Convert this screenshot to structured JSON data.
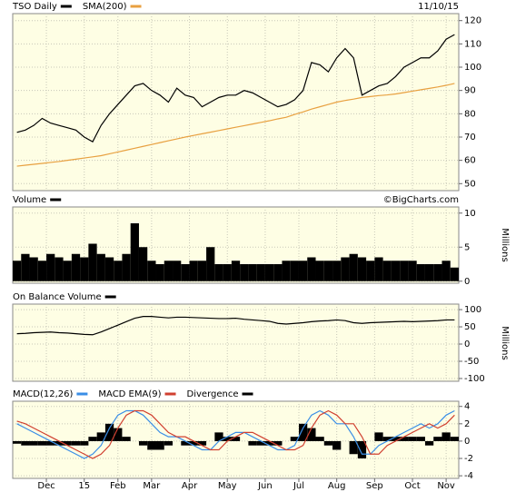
{
  "chart_data": [
    {
      "type": "line",
      "date_label": "11/10/15",
      "grid": true,
      "x": [
        0,
        1,
        2,
        3,
        4,
        5,
        6,
        7,
        8,
        9,
        10,
        11,
        12,
        13,
        14,
        15,
        16,
        17,
        18,
        19,
        20,
        21,
        22,
        23,
        24,
        25,
        26,
        27,
        28,
        29,
        30,
        31,
        32,
        33,
        34,
        35,
        36,
        37,
        38,
        39,
        40,
        41,
        42,
        43,
        44,
        45,
        46,
        47,
        48,
        49,
        50,
        51,
        52
      ],
      "xlim": [
        -0.5,
        52.5
      ],
      "ylim": [
        47,
        123
      ],
      "yticks": [
        50,
        60,
        70,
        80,
        90,
        100,
        110,
        120
      ],
      "series": [
        {
          "name": "TSO Daily",
          "color": "#000000",
          "values": [
            72,
            73,
            75,
            78,
            76,
            75,
            74,
            73,
            70,
            68,
            75,
            80,
            84,
            88,
            92,
            93,
            90,
            88,
            85,
            91,
            88,
            87,
            83,
            85,
            87,
            88,
            88,
            90,
            89,
            87,
            85,
            83,
            84,
            86,
            90,
            102,
            101,
            98,
            104,
            108,
            104,
            88,
            90,
            92,
            93,
            96,
            100,
            102,
            104,
            104,
            107,
            112,
            114
          ]
        },
        {
          "name": "SMA(200)",
          "color": "#e8a040",
          "values": [
            57.5,
            57.9,
            58.3,
            58.7,
            59.1,
            59.5,
            60,
            60.5,
            61,
            61.5,
            62,
            62.8,
            63.6,
            64.4,
            65.2,
            66,
            66.8,
            67.6,
            68.4,
            69.2,
            70,
            70.7,
            71.4,
            72.1,
            72.8,
            73.5,
            74.2,
            74.9,
            75.6,
            76.3,
            77,
            77.8,
            78.5,
            79.7,
            80.8,
            82,
            83,
            84,
            85,
            85.7,
            86.3,
            87,
            87.4,
            87.8,
            88.1,
            88.5,
            89.1,
            89.7,
            90.3,
            90.9,
            91.5,
            92.2,
            93
          ]
        }
      ]
    },
    {
      "type": "bar",
      "credit": "©BigCharts.com",
      "y_label": "Millions",
      "grid": true,
      "x": [
        0,
        1,
        2,
        3,
        4,
        5,
        6,
        7,
        8,
        9,
        10,
        11,
        12,
        13,
        14,
        15,
        16,
        17,
        18,
        19,
        20,
        21,
        22,
        23,
        24,
        25,
        26,
        27,
        28,
        29,
        30,
        31,
        32,
        33,
        34,
        35,
        36,
        37,
        38,
        39,
        40,
        41,
        42,
        43,
        44,
        45,
        46,
        47,
        48,
        49,
        50,
        51,
        52
      ],
      "xlim": [
        -0.5,
        52.5
      ],
      "ylim": [
        -0.3,
        10.9
      ],
      "yticks": [
        0,
        5,
        10
      ],
      "series": [
        {
          "name": "Volume",
          "color": "#000000",
          "values": [
            3,
            4,
            3.5,
            3,
            4,
            3.5,
            3,
            4,
            3.5,
            5.5,
            4,
            3.5,
            3,
            4,
            8.5,
            5,
            3,
            2.5,
            3,
            3,
            2.5,
            3,
            3,
            5,
            2.5,
            2.5,
            3,
            2.5,
            2.5,
            2.5,
            2.5,
            2.5,
            3,
            3,
            3,
            3.5,
            3,
            3,
            3,
            3.5,
            4,
            3.5,
            3,
            3.5,
            3,
            3,
            3,
            3,
            2.5,
            2.5,
            2.5,
            3,
            2
          ]
        }
      ]
    },
    {
      "type": "line",
      "y_label": "Millions",
      "grid": true,
      "x": [
        0,
        1,
        2,
        3,
        4,
        5,
        6,
        7,
        8,
        9,
        10,
        11,
        12,
        13,
        14,
        15,
        16,
        17,
        18,
        19,
        20,
        21,
        22,
        23,
        24,
        25,
        26,
        27,
        28,
        29,
        30,
        31,
        32,
        33,
        34,
        35,
        36,
        37,
        38,
        39,
        40,
        41,
        42,
        43,
        44,
        45,
        46,
        47,
        48,
        49,
        50,
        51,
        52
      ],
      "xlim": [
        -0.5,
        52.5
      ],
      "ylim": [
        -108,
        116
      ],
      "yticks": [
        100,
        50,
        0,
        -50,
        -100
      ],
      "series": [
        {
          "name": "On Balance Volume",
          "color": "#000000",
          "values": [
            30,
            31,
            33,
            34,
            35,
            33,
            32,
            30,
            28,
            27,
            35,
            45,
            55,
            65,
            75,
            80,
            80,
            78,
            76,
            78,
            78,
            77,
            76,
            75,
            74,
            74,
            75,
            72,
            70,
            68,
            66,
            60,
            58,
            60,
            62,
            65,
            67,
            68,
            70,
            68,
            62,
            60,
            62,
            63,
            64,
            65,
            66,
            65,
            66,
            67,
            68,
            70,
            70
          ]
        }
      ]
    },
    {
      "type": "line",
      "grid": true,
      "x": [
        0,
        1,
        2,
        3,
        4,
        5,
        6,
        7,
        8,
        9,
        10,
        11,
        12,
        13,
        14,
        15,
        16,
        17,
        18,
        19,
        20,
        21,
        22,
        23,
        24,
        25,
        26,
        27,
        28,
        29,
        30,
        31,
        32,
        33,
        34,
        35,
        36,
        37,
        38,
        39,
        40,
        41,
        42,
        43,
        44,
        45,
        46,
        47,
        48,
        49,
        50,
        51,
        52
      ],
      "xlim": [
        -0.5,
        52.5
      ],
      "ylim": [
        -4.3,
        4.6
      ],
      "yticks": [
        4,
        2,
        0,
        -2,
        -4
      ],
      "xticks": [
        {
          "value": 3.5,
          "label": "Dec"
        },
        {
          "value": 8,
          "label": "15"
        },
        {
          "value": 12,
          "label": "Feb"
        },
        {
          "value": 16,
          "label": "Mar"
        },
        {
          "value": 20.5,
          "label": "Apr"
        },
        {
          "value": 25,
          "label": "May"
        },
        {
          "value": 29.5,
          "label": "Jun"
        },
        {
          "value": 33.5,
          "label": "Jul"
        },
        {
          "value": 38,
          "label": "Aug"
        },
        {
          "value": 42.5,
          "label": "Sep"
        },
        {
          "value": 47,
          "label": "Oct"
        },
        {
          "value": 51,
          "label": "Nov"
        }
      ],
      "series": [
        {
          "name": "MACD(12,26)",
          "color": "#3a8ee6",
          "values": [
            2,
            1.5,
            1,
            0.5,
            0,
            -0.5,
            -1,
            -1.5,
            -2,
            -1.5,
            -0.5,
            1.5,
            3,
            3.5,
            3.5,
            3,
            2,
            1,
            0.5,
            0.5,
            0,
            -0.5,
            -1,
            -1,
            0,
            0.5,
            1,
            1,
            0.5,
            0,
            -0.5,
            -1,
            -1,
            -0.5,
            1.5,
            3,
            3.5,
            3,
            2,
            2,
            0.5,
            -1.5,
            -1.5,
            -0.5,
            0,
            0.5,
            1,
            1.5,
            2,
            1.5,
            2,
            3,
            3.5
          ]
        },
        {
          "name": "MACD EMA(9)",
          "color": "#d04030",
          "values": [
            2.3,
            2,
            1.5,
            1,
            0.5,
            0,
            -0.5,
            -1,
            -1.5,
            -2,
            -1.5,
            -0.5,
            1.5,
            3,
            3.5,
            3.5,
            3,
            2,
            1,
            0.5,
            0.5,
            0,
            -0.5,
            -1,
            -1,
            0,
            0.5,
            1,
            1,
            0.5,
            0,
            -0.5,
            -1,
            -1,
            -0.5,
            1.5,
            3,
            3.5,
            3,
            2,
            2,
            0.5,
            -1.5,
            -1.5,
            -0.5,
            0,
            0.5,
            1,
            1.5,
            2,
            1.5,
            2,
            3
          ]
        },
        {
          "name": "Divergence",
          "type": "bar",
          "color": "#000000",
          "values": [
            -0.3,
            -0.5,
            -0.5,
            -0.5,
            -0.5,
            -0.5,
            -0.5,
            -0.5,
            -0.5,
            0.5,
            1,
            2,
            1.5,
            0.5,
            0,
            -0.5,
            -1,
            -1,
            -0.5,
            0,
            -0.5,
            -0.5,
            -0.5,
            0,
            1,
            0.5,
            0.5,
            0,
            -0.5,
            -0.5,
            -0.5,
            -0.5,
            0,
            0.5,
            2,
            1.5,
            0.5,
            -0.5,
            -1,
            0,
            -1.5,
            -2,
            0,
            1,
            0.5,
            0.5,
            0.5,
            0.5,
            0.5,
            -0.5,
            0.5,
            1,
            0.5
          ]
        }
      ]
    }
  ]
}
